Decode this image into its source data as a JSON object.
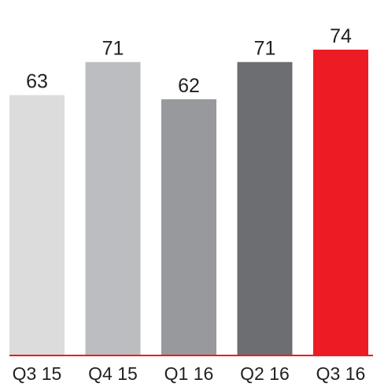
{
  "chart_data": {
    "type": "bar",
    "categories": [
      "Q3 15",
      "Q4 15",
      "Q1 16",
      "Q2 16",
      "Q3 16"
    ],
    "values": [
      63,
      71,
      62,
      71,
      74
    ],
    "data_labels": [
      "63",
      "71",
      "62",
      "71",
      "74"
    ],
    "title": "",
    "xlabel": "",
    "ylabel": "",
    "ylim": [
      0,
      74
    ],
    "grid": false,
    "legend": "none",
    "bar_colors": [
      "#dcdcdd",
      "#bcbdc0",
      "#98999c",
      "#6d6e71",
      "#ed1c24"
    ],
    "baseline_color": "#ed1c24"
  }
}
